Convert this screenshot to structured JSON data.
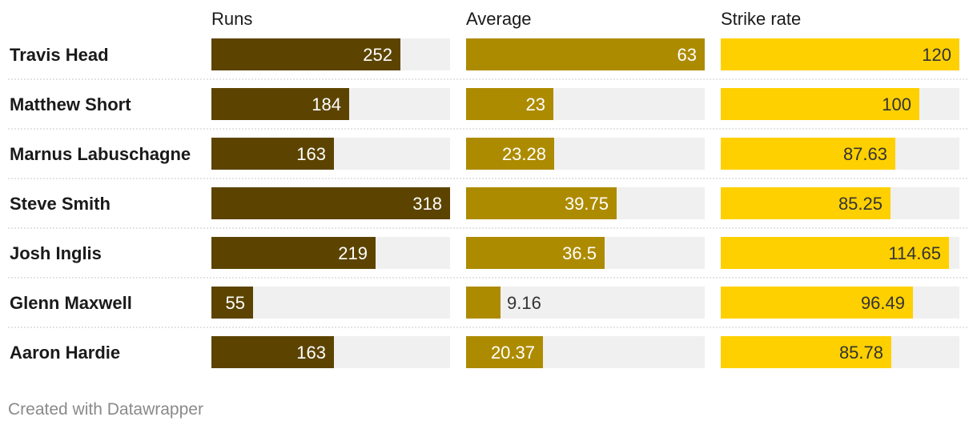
{
  "chart_data": {
    "type": "bar",
    "categories": [
      "Travis Head",
      "Matthew Short",
      "Marnus Labuschagne",
      "Steve Smith",
      "Josh Inglis",
      "Glenn Maxwell",
      "Aaron Hardie"
    ],
    "columns": [
      {
        "title": "Runs",
        "color": "#5c4400",
        "max": 318,
        "values": [
          252,
          184,
          163,
          318,
          219,
          55,
          163
        ],
        "labels": [
          "252",
          "184",
          "163",
          "318",
          "219",
          "55",
          "163"
        ]
      },
      {
        "title": "Average",
        "color": "#ad8b00",
        "max": 63,
        "values": [
          63,
          23,
          23.28,
          39.75,
          36.5,
          9.16,
          20.37
        ],
        "labels": [
          "63",
          "23",
          "23.28",
          "39.75",
          "36.5",
          "9.16",
          "20.37"
        ]
      },
      {
        "title": "Strike rate",
        "color": "#ffd000",
        "max": 120,
        "values": [
          120,
          100,
          87.63,
          85.25,
          114.65,
          96.49,
          85.78
        ],
        "labels": [
          "120",
          "100",
          "87.63",
          "85.25",
          "114.65",
          "96.49",
          "85.78"
        ]
      }
    ],
    "background_bar_color": "#f0f0f0",
    "label_color_inside": "#ffffff",
    "label_color_inside_light": "#333333",
    "label_color_outside": "#333333"
  },
  "footer": "Created with Datawrapper"
}
